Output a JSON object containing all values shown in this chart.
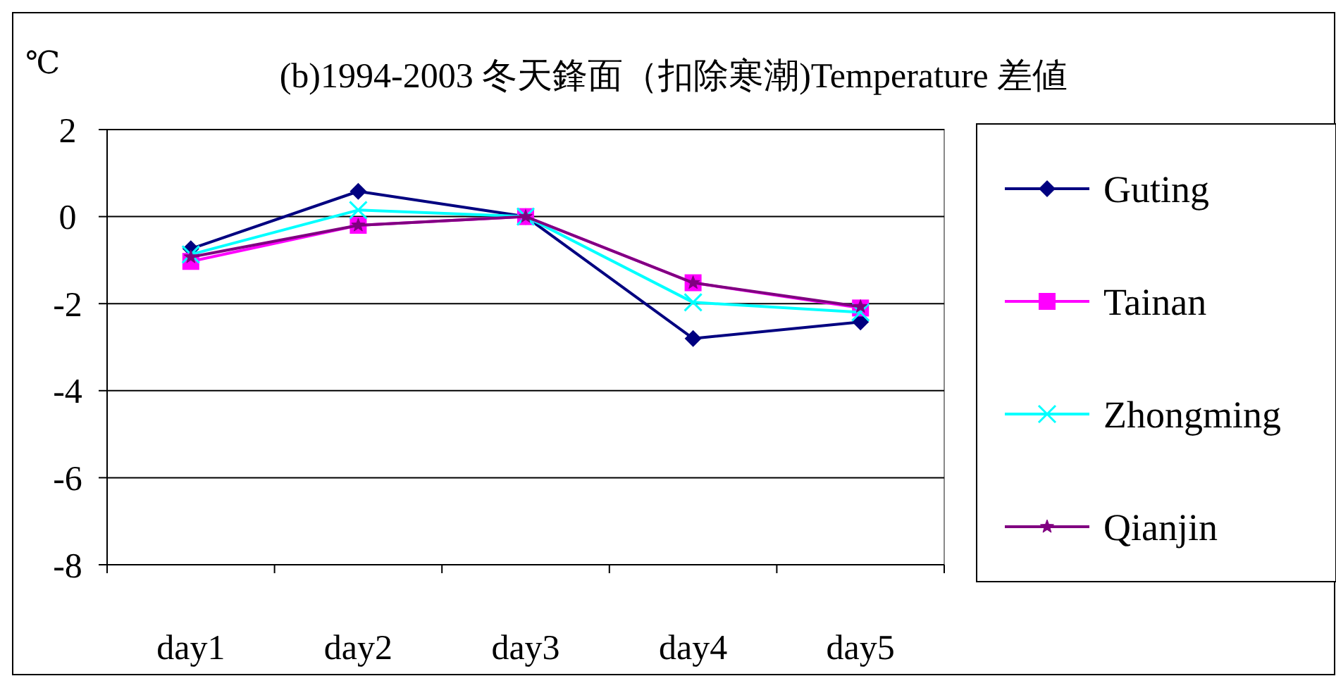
{
  "chart_data": {
    "type": "line",
    "title": "(b)1994-2003  冬天鋒面（扣除寒潮)Temperature 差値",
    "ylabel": "℃",
    "categories": [
      "day1",
      "day2",
      "day3",
      "day4",
      "day5"
    ],
    "series": [
      {
        "name": "Guting",
        "color": "#000080",
        "marker": "diamond",
        "values": [
          -0.74,
          0.58,
          0,
          -2.8,
          -2.42
        ]
      },
      {
        "name": "Tainan",
        "color": "#ff00ff",
        "marker": "square",
        "values": [
          -1.03,
          -0.2,
          0,
          -1.52,
          -2.1
        ]
      },
      {
        "name": "Zhongming",
        "color": "#00ffff",
        "marker": "cross",
        "values": [
          -0.87,
          0.15,
          0,
          -1.97,
          -2.2
        ]
      },
      {
        "name": "Qianjin",
        "color": "#800080",
        "marker": "star",
        "values": [
          -0.93,
          -0.2,
          0,
          -1.52,
          -2.07
        ]
      }
    ],
    "ylim": [
      -8,
      2
    ],
    "yticks": [
      -8,
      -6,
      -4,
      -2,
      0,
      2
    ],
    "grid": "y",
    "legend": "right"
  }
}
